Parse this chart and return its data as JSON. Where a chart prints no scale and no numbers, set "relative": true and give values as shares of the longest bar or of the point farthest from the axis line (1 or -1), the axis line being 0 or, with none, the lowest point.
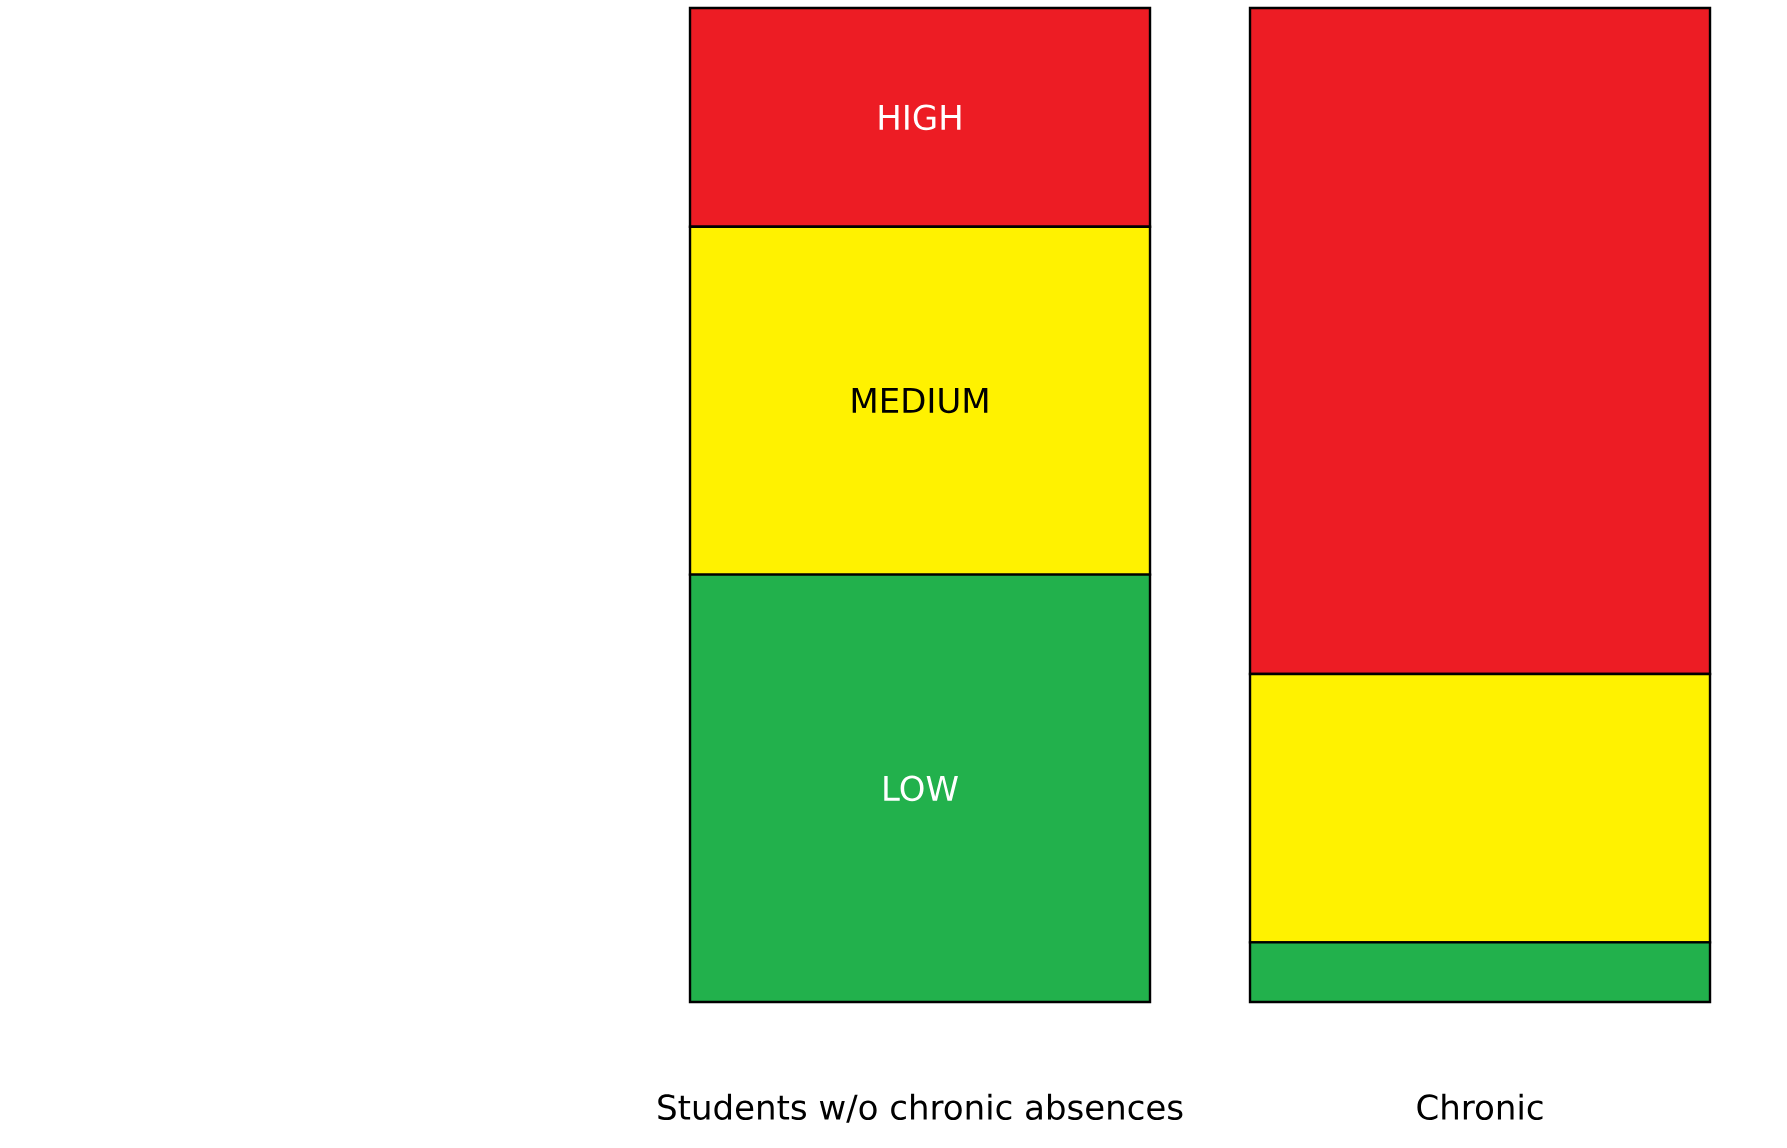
{
  "chart_data": {
    "type": "bar",
    "stacked": true,
    "relative": true,
    "categories": [
      "Students w/o chronic absences",
      "Chronic"
    ],
    "series": [
      {
        "name": "LOW",
        "color": "#22b14c",
        "values": [
          0.43,
          0.06
        ]
      },
      {
        "name": "MEDIUM",
        "color": "#fff200",
        "values": [
          0.35,
          0.27
        ]
      },
      {
        "name": "HIGH",
        "color": "#ed1c24",
        "values": [
          0.22,
          0.67
        ]
      }
    ]
  }
}
